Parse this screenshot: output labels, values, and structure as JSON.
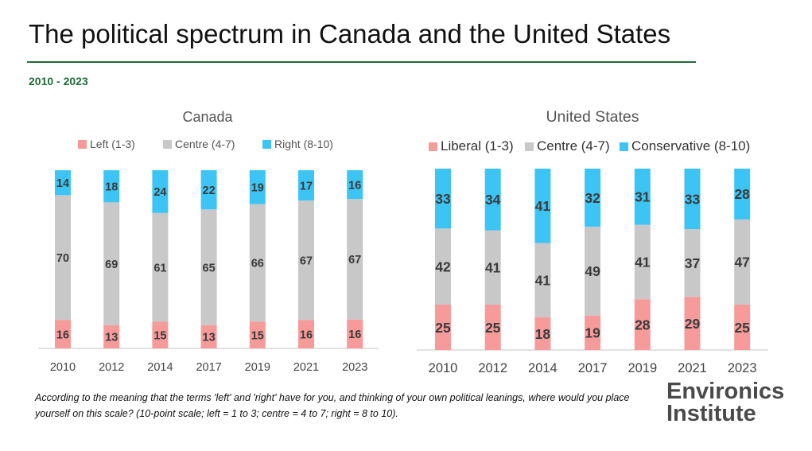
{
  "header": {
    "title": "The political spectrum in Canada and the United States",
    "subtitle": "2010 - 2023"
  },
  "footer": {
    "question": "According to the meaning that the terms 'left' and 'right' have for you, and thinking of your own political leanings, where would you place yourself on this scale? (10-point scale; left = 1 to 3; centre = 4 to 7; right = 8 to 10).",
    "logo_line1": "Environics",
    "logo_line2": "Institute"
  },
  "colors": {
    "left": "#f79a9a",
    "centre": "#c8c8c8",
    "right": "#3cc4f4"
  },
  "chart_data": [
    {
      "type": "bar",
      "stacked": true,
      "title": "Canada",
      "categories": [
        "2010",
        "2012",
        "2014",
        "2017",
        "2019",
        "2021",
        "2023"
      ],
      "series": [
        {
          "name": "Left (1-3)",
          "values": [
            16,
            13,
            15,
            13,
            15,
            16,
            16
          ]
        },
        {
          "name": "Centre (4-7)",
          "values": [
            70,
            69,
            61,
            65,
            66,
            67,
            67
          ]
        },
        {
          "name": "Right (8-10)",
          "values": [
            14,
            18,
            24,
            22,
            19,
            17,
            16
          ]
        }
      ],
      "legend": "top",
      "grid": false
    },
    {
      "type": "bar",
      "stacked": true,
      "title": "United States",
      "categories": [
        "2010",
        "2012",
        "2014",
        "2017",
        "2019",
        "2021",
        "2023"
      ],
      "series": [
        {
          "name": "Liberal (1-3)",
          "values": [
            25,
            25,
            18,
            19,
            28,
            29,
            25
          ]
        },
        {
          "name": "Centre (4-7)",
          "values": [
            42,
            41,
            41,
            49,
            41,
            37,
            47
          ]
        },
        {
          "name": "Conservative (8-10)",
          "values": [
            33,
            34,
            41,
            32,
            31,
            33,
            28
          ]
        }
      ],
      "legend": "top",
      "grid": false
    }
  ]
}
